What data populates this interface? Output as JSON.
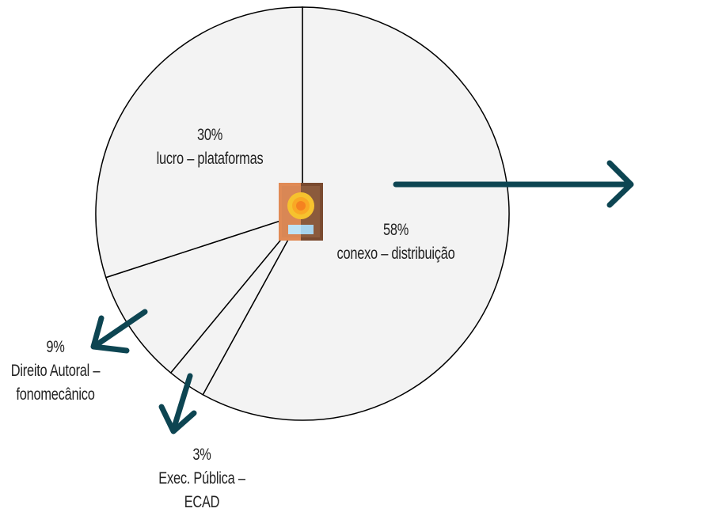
{
  "chart_data": {
    "type": "pie",
    "slices": [
      {
        "label": "conexo – distribuição",
        "percent_label": "58%",
        "value": 58
      },
      {
        "label": "Exec. Pública – ECAD",
        "percent_label": "3%",
        "value": 3
      },
      {
        "label": "Direito Autoral – fonomecânico",
        "percent_label": "9%",
        "value": 9
      },
      {
        "label": "lucro – plataformas",
        "percent_label": "30%",
        "value": 30
      }
    ],
    "labels": {
      "distribution": {
        "pct": "58%",
        "line1": "conexo – distribuição"
      },
      "platforms": {
        "pct": "30%",
        "line1": "lucro – plataformas"
      },
      "copyright": {
        "pct": "9%",
        "line1": "Direito Autoral –",
        "line2": "fonomecânico"
      },
      "ecad": {
        "pct": "3%",
        "line1": "Exec. Pública  –",
        "line2": "ECAD"
      }
    },
    "colors": {
      "slice_fill": "#f3f3f3",
      "slice_stroke": "#000000",
      "arrow": "#0d4552"
    },
    "center_icon": "award-plaque-icon"
  }
}
